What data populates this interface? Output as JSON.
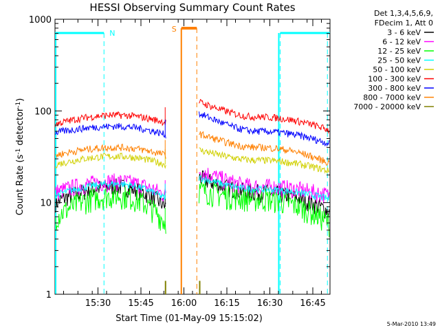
{
  "chart_data": {
    "type": "line",
    "title": "HESSI Observing Summary Count Rates",
    "xlabel": "Start Time (01-May-09 15:15:02)",
    "ylabel_prefix": "Count Rate (s",
    "ylabel_sup1": "-1",
    "ylabel_mid": " detector",
    "ylabel_sup2": "-1",
    "ylabel_suffix": ")",
    "yscale": "log",
    "ylim": [
      1,
      1000
    ],
    "xlim_minutes": [
      15.25,
      16.85
    ],
    "x_ticks": [
      {
        "label": "15:30",
        "t": 15.5
      },
      {
        "label": "15:45",
        "t": 15.75
      },
      {
        "label": "16:00",
        "t": 16.0
      },
      {
        "label": "16:15",
        "t": 16.25
      },
      {
        "label": "16:30",
        "t": 16.5
      },
      {
        "label": "16:45",
        "t": 16.75
      }
    ],
    "y_ticks": [
      {
        "label": "1",
        "v": 1
      },
      {
        "label": "10",
        "v": 10
      },
      {
        "label": "100",
        "v": 100
      },
      {
        "label": "1000",
        "v": 1000
      }
    ],
    "legend_header": [
      "Det 1,3,4,5,6,9,",
      "FDecim 1, Att 0"
    ],
    "legend_placement": "right",
    "series": [
      {
        "name": "3 - 6 keV",
        "color": "#000000",
        "before": [
          10,
          15,
          9
        ],
        "after": [
          15,
          13,
          8
        ]
      },
      {
        "name": "6 - 12 keV",
        "color": "#ff00ff",
        "before": [
          13,
          17,
          12
        ],
        "after": [
          18,
          15,
          12
        ]
      },
      {
        "name": "12 - 25 keV",
        "color": "#00ff00",
        "before": [
          7,
          12,
          6
        ],
        "after": [
          11,
          11,
          6
        ]
      },
      {
        "name": "25 - 50 keV",
        "color": "#00ffff",
        "before": [
          12,
          16,
          11
        ],
        "after": [
          15,
          14,
          11
        ]
      },
      {
        "name": "50 - 100 keV",
        "color": "#d0d000",
        "before": [
          26,
          32,
          26
        ],
        "after": [
          30,
          29,
          22
        ]
      },
      {
        "name": "100 - 300 keV",
        "color": "#ff0000",
        "before": [
          72,
          90,
          75
        ],
        "after": [
          100,
          86,
          62
        ]
      },
      {
        "name": "300 - 800 keV",
        "color": "#0000ff",
        "before": [
          58,
          68,
          55
        ],
        "after": [
          75,
          60,
          44
        ]
      },
      {
        "name": "800 - 7000 keV",
        "color": "#ff8000",
        "before": [
          33,
          40,
          33
        ],
        "after": [
          45,
          40,
          27
        ]
      },
      {
        "name": "7000 - 20000 keV",
        "color": "#808000",
        "before": [],
        "after": []
      }
    ],
    "data_gap": {
      "start": 15.895,
      "end": 16.085
    },
    "saa_interval": {
      "label": "S",
      "start": 15.985,
      "end": 16.075,
      "color": "#ff8000"
    },
    "night_intervals": [
      {
        "label": "N",
        "start": 15.25,
        "end": 15.535,
        "color": "#00ffff"
      },
      {
        "label": "",
        "start": 16.56,
        "end": 16.85,
        "color": "#00ffff"
      }
    ],
    "night_boundaries": [
      15.535,
      16.56,
      16.835
    ]
  },
  "footer_date": "5-Mar-2010 13:49"
}
